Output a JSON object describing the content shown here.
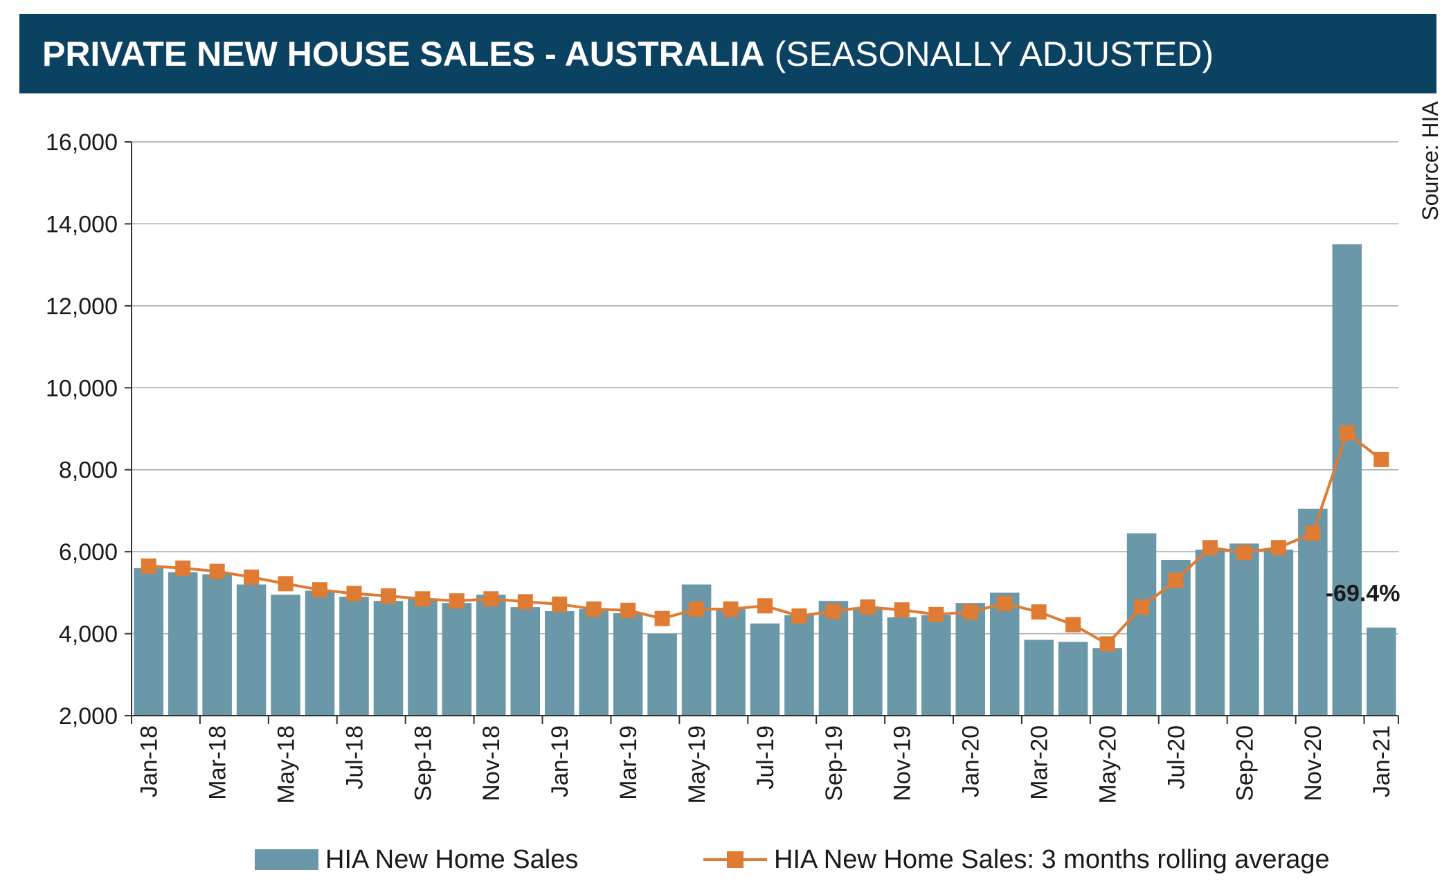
{
  "header": {
    "title_main": "PRIVATE NEW HOUSE SALES -  AUSTRALIA",
    "title_sub": "(SEASONALLY ADJUSTED)"
  },
  "source": "Source: HIA",
  "colors": {
    "header_bg": "#0b4262",
    "bar": "#6a98a8",
    "line": "#e07b33",
    "grid": "#a6a6a6"
  },
  "chart_data": {
    "type": "bar",
    "x": [
      "Jan-18",
      "Feb-18",
      "Mar-18",
      "Apr-18",
      "May-18",
      "Jun-18",
      "Jul-18",
      "Aug-18",
      "Sep-18",
      "Oct-18",
      "Nov-18",
      "Dec-18",
      "Jan-19",
      "Feb-19",
      "Mar-19",
      "Apr-19",
      "May-19",
      "Jun-19",
      "Jul-19",
      "Aug-19",
      "Sep-19",
      "Oct-19",
      "Nov-19",
      "Dec-19",
      "Jan-20",
      "Feb-20",
      "Mar-20",
      "Apr-20",
      "May-20",
      "Jun-20",
      "Jul-20",
      "Aug-20",
      "Sep-20",
      "Oct-20",
      "Nov-20",
      "Dec-20",
      "Jan-21"
    ],
    "tick_labels": [
      "Jan-18",
      "Mar-18",
      "May-18",
      "Jul-18",
      "Sep-18",
      "Nov-18",
      "Jan-19",
      "Mar-19",
      "May-19",
      "Jul-19",
      "Sep-19",
      "Nov-19",
      "Jan-20",
      "Mar-20",
      "May-20",
      "Jul-20",
      "Sep-20",
      "Nov-20",
      "Jan-21"
    ],
    "y_ticks": [
      "2,000",
      "4,000",
      "6,000",
      "8,000",
      "10,000",
      "12,000",
      "14,000",
      "16,000"
    ],
    "ylim": [
      2000,
      16000
    ],
    "grid": true,
    "legend_position": "bottom",
    "series": [
      {
        "name": "HIA New Home Sales",
        "type": "bar",
        "values": [
          5600,
          5500,
          5450,
          5200,
          4950,
          5050,
          4900,
          4800,
          4850,
          4750,
          4950,
          4650,
          4550,
          4600,
          4500,
          4000,
          5200,
          4600,
          4250,
          4450,
          4800,
          4600,
          4400,
          4450,
          4750,
          5000,
          3850,
          3800,
          3650,
          6450,
          5800,
          6050,
          6200,
          6050,
          7050,
          13500,
          4150
        ]
      },
      {
        "name": "HIA New Home Sales: 3 months rolling average",
        "type": "line",
        "values": [
          5650,
          5600,
          5520,
          5380,
          5220,
          5070,
          4980,
          4920,
          4850,
          4800,
          4850,
          4780,
          4720,
          4600,
          4570,
          4370,
          4600,
          4600,
          4680,
          4430,
          4550,
          4650,
          4580,
          4470,
          4530,
          4740,
          4530,
          4220,
          3750,
          4650,
          5300,
          6100,
          5980,
          6100,
          6450,
          8900,
          8250
        ]
      }
    ],
    "annotations": [
      {
        "text": "-69.4%",
        "x": "Jan-21"
      }
    ]
  }
}
